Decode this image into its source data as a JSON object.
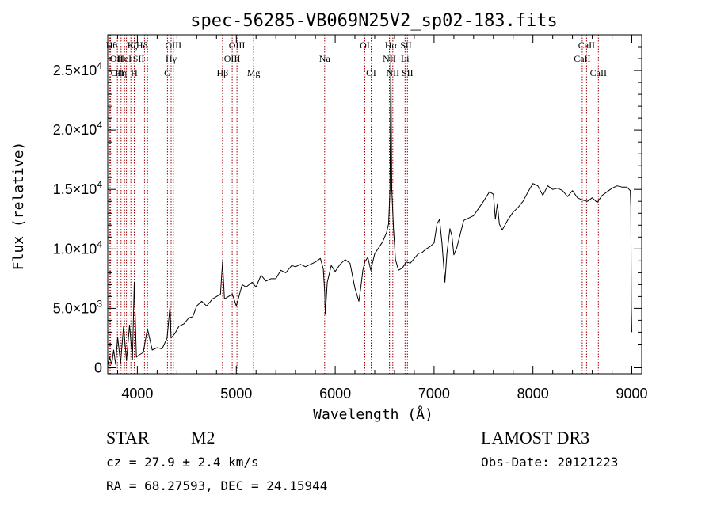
{
  "chart_data": {
    "type": "line",
    "title": "spec-56285-VB069N25V2_sp02-183.fits",
    "xlabel": "Wavelength (Å)",
    "ylabel": "Flux (relative)",
    "xlim": [
      3700,
      9100
    ],
    "ylim": [
      -500,
      28000
    ],
    "x_ticks": [
      {
        "value": 4000,
        "label": "4000"
      },
      {
        "value": 5000,
        "label": "5000"
      },
      {
        "value": 6000,
        "label": "6000"
      },
      {
        "value": 7000,
        "label": "7000"
      },
      {
        "value": 8000,
        "label": "8000"
      },
      {
        "value": 9000,
        "label": "9000"
      }
    ],
    "y_ticks": [
      {
        "value": 0,
        "label": "0"
      },
      {
        "value": 5000,
        "mantissa": "5.0×10",
        "exponent": "3"
      },
      {
        "value": 10000,
        "mantissa": "1.0×10",
        "exponent": "4"
      },
      {
        "value": 15000,
        "mantissa": "1.5×10",
        "exponent": "4"
      },
      {
        "value": 20000,
        "mantissa": "2.0×10",
        "exponent": "4"
      },
      {
        "value": 25000,
        "mantissa": "2.5×10",
        "exponent": "4"
      }
    ],
    "series": [
      {
        "name": "flux",
        "x": [
          3700,
          3720,
          3740,
          3760,
          3780,
          3800,
          3830,
          3860,
          3890,
          3920,
          3950,
          3968,
          3990,
          4020,
          4060,
          4101,
          4150,
          4200,
          4250,
          4300,
          4330,
          4340,
          4380,
          4420,
          4470,
          4520,
          4560,
          4600,
          4650,
          4700,
          4760,
          4800,
          4840,
          4861,
          4880,
          4920,
          4960,
          5000,
          5030,
          5060,
          5100,
          5160,
          5200,
          5250,
          5300,
          5350,
          5400,
          5450,
          5500,
          5560,
          5600,
          5650,
          5700,
          5750,
          5800,
          5850,
          5880,
          5895,
          5900,
          5920,
          5960,
          6000,
          6050,
          6100,
          6150,
          6200,
          6240,
          6260,
          6280,
          6300,
          6330,
          6360,
          6400,
          6440,
          6480,
          6520,
          6540,
          6555,
          6563,
          6572,
          6590,
          6610,
          6640,
          6680,
          6720,
          6760,
          6800,
          6840,
          6880,
          6920,
          6960,
          7000,
          7030,
          7055,
          7080,
          7110,
          7130,
          7160,
          7180,
          7200,
          7230,
          7300,
          7400,
          7500,
          7560,
          7600,
          7620,
          7640,
          7660,
          7690,
          7750,
          7800,
          7850,
          7900,
          7950,
          8000,
          8050,
          8100,
          8150,
          8200,
          8250,
          8300,
          8350,
          8400,
          8450,
          8500,
          8550,
          8600,
          8650,
          8700,
          8750,
          8800,
          8850,
          8900,
          8950,
          8985,
          8990,
          8995,
          9000
        ],
        "y": [
          200,
          900,
          300,
          1500,
          300,
          2600,
          400,
          3500,
          600,
          3600,
          700,
          7200,
          900,
          1100,
          1300,
          3300,
          1500,
          1700,
          1600,
          2500,
          5200,
          2500,
          2900,
          3500,
          3700,
          4200,
          4300,
          5200,
          5600,
          5200,
          5800,
          6000,
          6200,
          8900,
          5800,
          6000,
          6200,
          5200,
          6100,
          7000,
          6800,
          7200,
          6800,
          7800,
          7300,
          7500,
          7500,
          8200,
          8000,
          8600,
          8500,
          8700,
          8500,
          8700,
          8900,
          9200,
          8300,
          6200,
          4500,
          7200,
          8600,
          8100,
          8700,
          9100,
          8800,
          6700,
          5600,
          6800,
          8200,
          8900,
          9300,
          8200,
          9600,
          10100,
          10600,
          11400,
          12100,
          15000,
          26400,
          15000,
          11700,
          9100,
          8200,
          8400,
          8900,
          8800,
          9200,
          9600,
          9700,
          10000,
          10200,
          10500,
          12100,
          12500,
          10500,
          7200,
          9600,
          11700,
          11100,
          9500,
          10100,
          12400,
          12800,
          14000,
          14800,
          14600,
          12500,
          13800,
          12100,
          11600,
          12500,
          13100,
          13500,
          14000,
          14800,
          15500,
          15300,
          14500,
          15300,
          15000,
          15100,
          14900,
          14400,
          14900,
          14300,
          14100,
          14000,
          14300,
          13900,
          14500,
          14800,
          15100,
          15300,
          15200,
          15200,
          14900,
          13500,
          5000,
          3000
        ]
      }
    ],
    "lines": [
      {
        "wave": 3722,
        "label": "OII",
        "row": 2,
        "align": "left"
      },
      {
        "wave": 3729,
        "label": "OII",
        "row": 3,
        "align": "left"
      },
      {
        "wave": 3798,
        "label": "Hθ",
        "row": 1,
        "align": "right"
      },
      {
        "wave": 3835,
        "label": "Hη",
        "row": 3,
        "align": "center"
      },
      {
        "wave": 3870,
        "label": "HeI",
        "row": 2,
        "align": "center"
      },
      {
        "wave": 3889,
        "label": "Hζ",
        "row": 1,
        "align": "left"
      },
      {
        "wave": 3934,
        "label": "K",
        "row": 1,
        "align": "center"
      },
      {
        "wave": 3968,
        "label": "H",
        "row": 3,
        "align": "center"
      },
      {
        "wave": 4072,
        "label": "SII",
        "row": 2,
        "align": "right"
      },
      {
        "wave": 4102,
        "label": "Hδ",
        "row": 1,
        "align": "right"
      },
      {
        "wave": 4304,
        "label": "G",
        "row": 3,
        "align": "center"
      },
      {
        "wave": 4341,
        "label": "Hγ",
        "row": 2,
        "align": "center"
      },
      {
        "wave": 4363,
        "label": "OIII",
        "row": 1,
        "align": "center"
      },
      {
        "wave": 4861,
        "label": "Hβ",
        "row": 3,
        "align": "center"
      },
      {
        "wave": 4959,
        "label": "OIII",
        "row": 2,
        "align": "center"
      },
      {
        "wave": 5007,
        "label": "OIII",
        "row": 1,
        "align": "center"
      },
      {
        "wave": 5175,
        "label": "Mg",
        "row": 3,
        "align": "center"
      },
      {
        "wave": 5894,
        "label": "Na",
        "row": 2,
        "align": "center"
      },
      {
        "wave": 6300,
        "label": "OI",
        "row": 1,
        "align": "center"
      },
      {
        "wave": 6364,
        "label": "OI",
        "row": 3,
        "align": "center"
      },
      {
        "wave": 6548,
        "label": "NII",
        "row": 2,
        "align": "center"
      },
      {
        "wave": 6563,
        "label": "Hα",
        "row": 1,
        "align": "center"
      },
      {
        "wave": 6583,
        "label": "NII",
        "row": 3,
        "align": "center"
      },
      {
        "wave": 6707,
        "label": "Li",
        "row": 2,
        "align": "center"
      },
      {
        "wave": 6716,
        "label": "SII",
        "row": 1,
        "align": "center"
      },
      {
        "wave": 6731,
        "label": "SII",
        "row": 3,
        "align": "center"
      },
      {
        "wave": 8498,
        "label": "CaII",
        "row": 2,
        "align": "center"
      },
      {
        "wave": 8542,
        "label": "CaII",
        "row": 1,
        "align": "center"
      },
      {
        "wave": 8662,
        "label": "CaII",
        "row": 3,
        "align": "center"
      }
    ]
  },
  "info": {
    "object_class": "STAR",
    "subclass": "M2",
    "survey": "LAMOST DR3",
    "cz": "cz = 27.9 ± 2.4 km/s",
    "obs_date": "Obs-Date: 20121223",
    "coords": "RA =  68.27593, DEC =  24.15944"
  }
}
